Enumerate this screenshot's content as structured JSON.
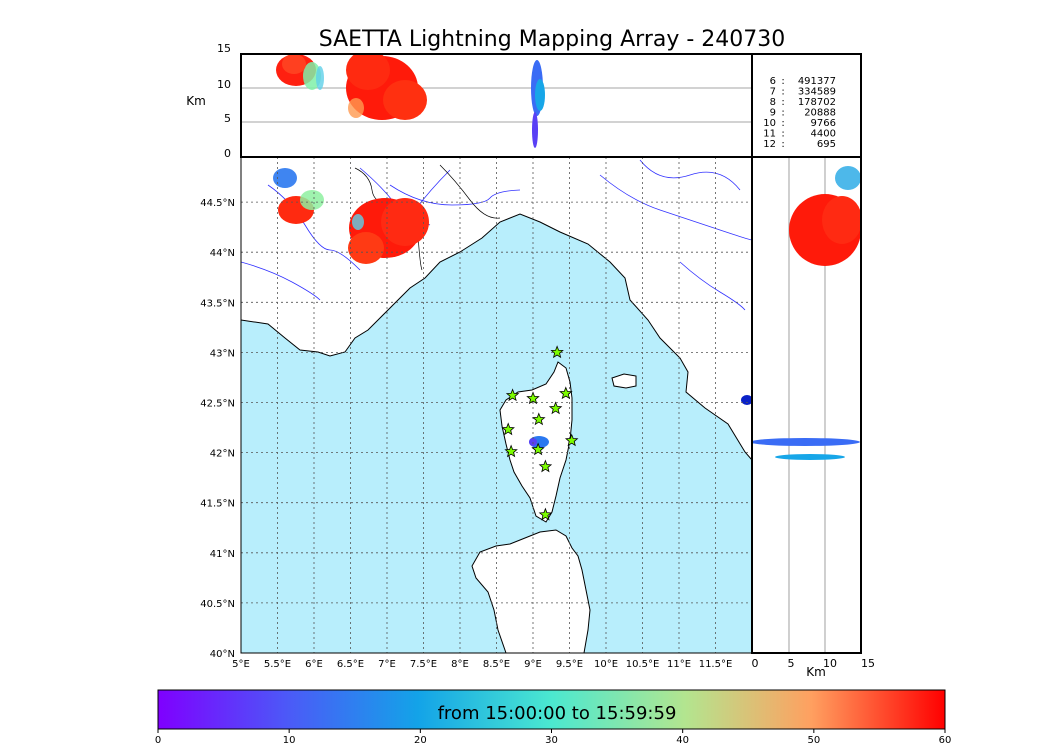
{
  "title": "SAETTA Lightning Mapping Array - 240730",
  "top_panel": {
    "y_axis_label": "Km",
    "y_ticks": [
      "0",
      "5",
      "10",
      "15"
    ]
  },
  "right_panel": {
    "x_axis_label": "Km",
    "x_ticks": [
      "0",
      "5",
      "10",
      "15"
    ]
  },
  "map": {
    "lon_ticks": [
      "5°E",
      "5.5°E",
      "6°E",
      "6.5°E",
      "7°E",
      "7.5°E",
      "8°E",
      "8.5°E",
      "9°E",
      "9.5°E",
      "10°E",
      "10.5°E",
      "11°E",
      "11.5°E"
    ],
    "lat_ticks": [
      "40°N",
      "40.5°N",
      "41°N",
      "41.5°N",
      "42°N",
      "42.5°N",
      "43°N",
      "43.5°N",
      "44°N",
      "44.5°N"
    ],
    "lon_range": [
      5,
      12
    ],
    "lat_range": [
      40,
      44.95
    ],
    "sea_color": "#b8eefc",
    "grid": "dotted",
    "station_marker": "star",
    "station_color": "#7cfc00"
  },
  "station_counts": [
    {
      "n": "6",
      "sep": ":",
      "count": "491377",
      "color": "#000000"
    },
    {
      "n": "7",
      "sep": ":",
      "count": "334589",
      "color": "#ff0000"
    },
    {
      "n": "8",
      "sep": ":",
      "count": "178702",
      "color": "#000000"
    },
    {
      "n": "9",
      "sep": ":",
      "count": "20888",
      "color": "#000000"
    },
    {
      "n": "10",
      "sep": ":",
      "count": "9766",
      "color": "#000000"
    },
    {
      "n": "11",
      "sep": ":",
      "count": "4400",
      "color": "#000000"
    },
    {
      "n": "12",
      "sep": ":",
      "count": "695",
      "color": "#000000"
    }
  ],
  "stations": [
    {
      "lon": 9.33,
      "lat": 43.0
    },
    {
      "lon": 8.72,
      "lat": 42.57
    },
    {
      "lon": 9.0,
      "lat": 42.54
    },
    {
      "lon": 9.45,
      "lat": 42.59
    },
    {
      "lon": 9.31,
      "lat": 42.44
    },
    {
      "lon": 9.08,
      "lat": 42.33
    },
    {
      "lon": 8.66,
      "lat": 42.23
    },
    {
      "lon": 9.53,
      "lat": 42.12
    },
    {
      "lon": 8.7,
      "lat": 42.01
    },
    {
      "lon": 9.07,
      "lat": 42.03
    },
    {
      "lon": 9.17,
      "lat": 41.86
    },
    {
      "lon": 9.17,
      "lat": 41.38
    }
  ],
  "colorbar": {
    "label": "from 15:00:00 to 15:59:59",
    "ticks": [
      "0",
      "10",
      "20",
      "30",
      "40",
      "50",
      "60"
    ],
    "min": 0,
    "max": 60
  }
}
